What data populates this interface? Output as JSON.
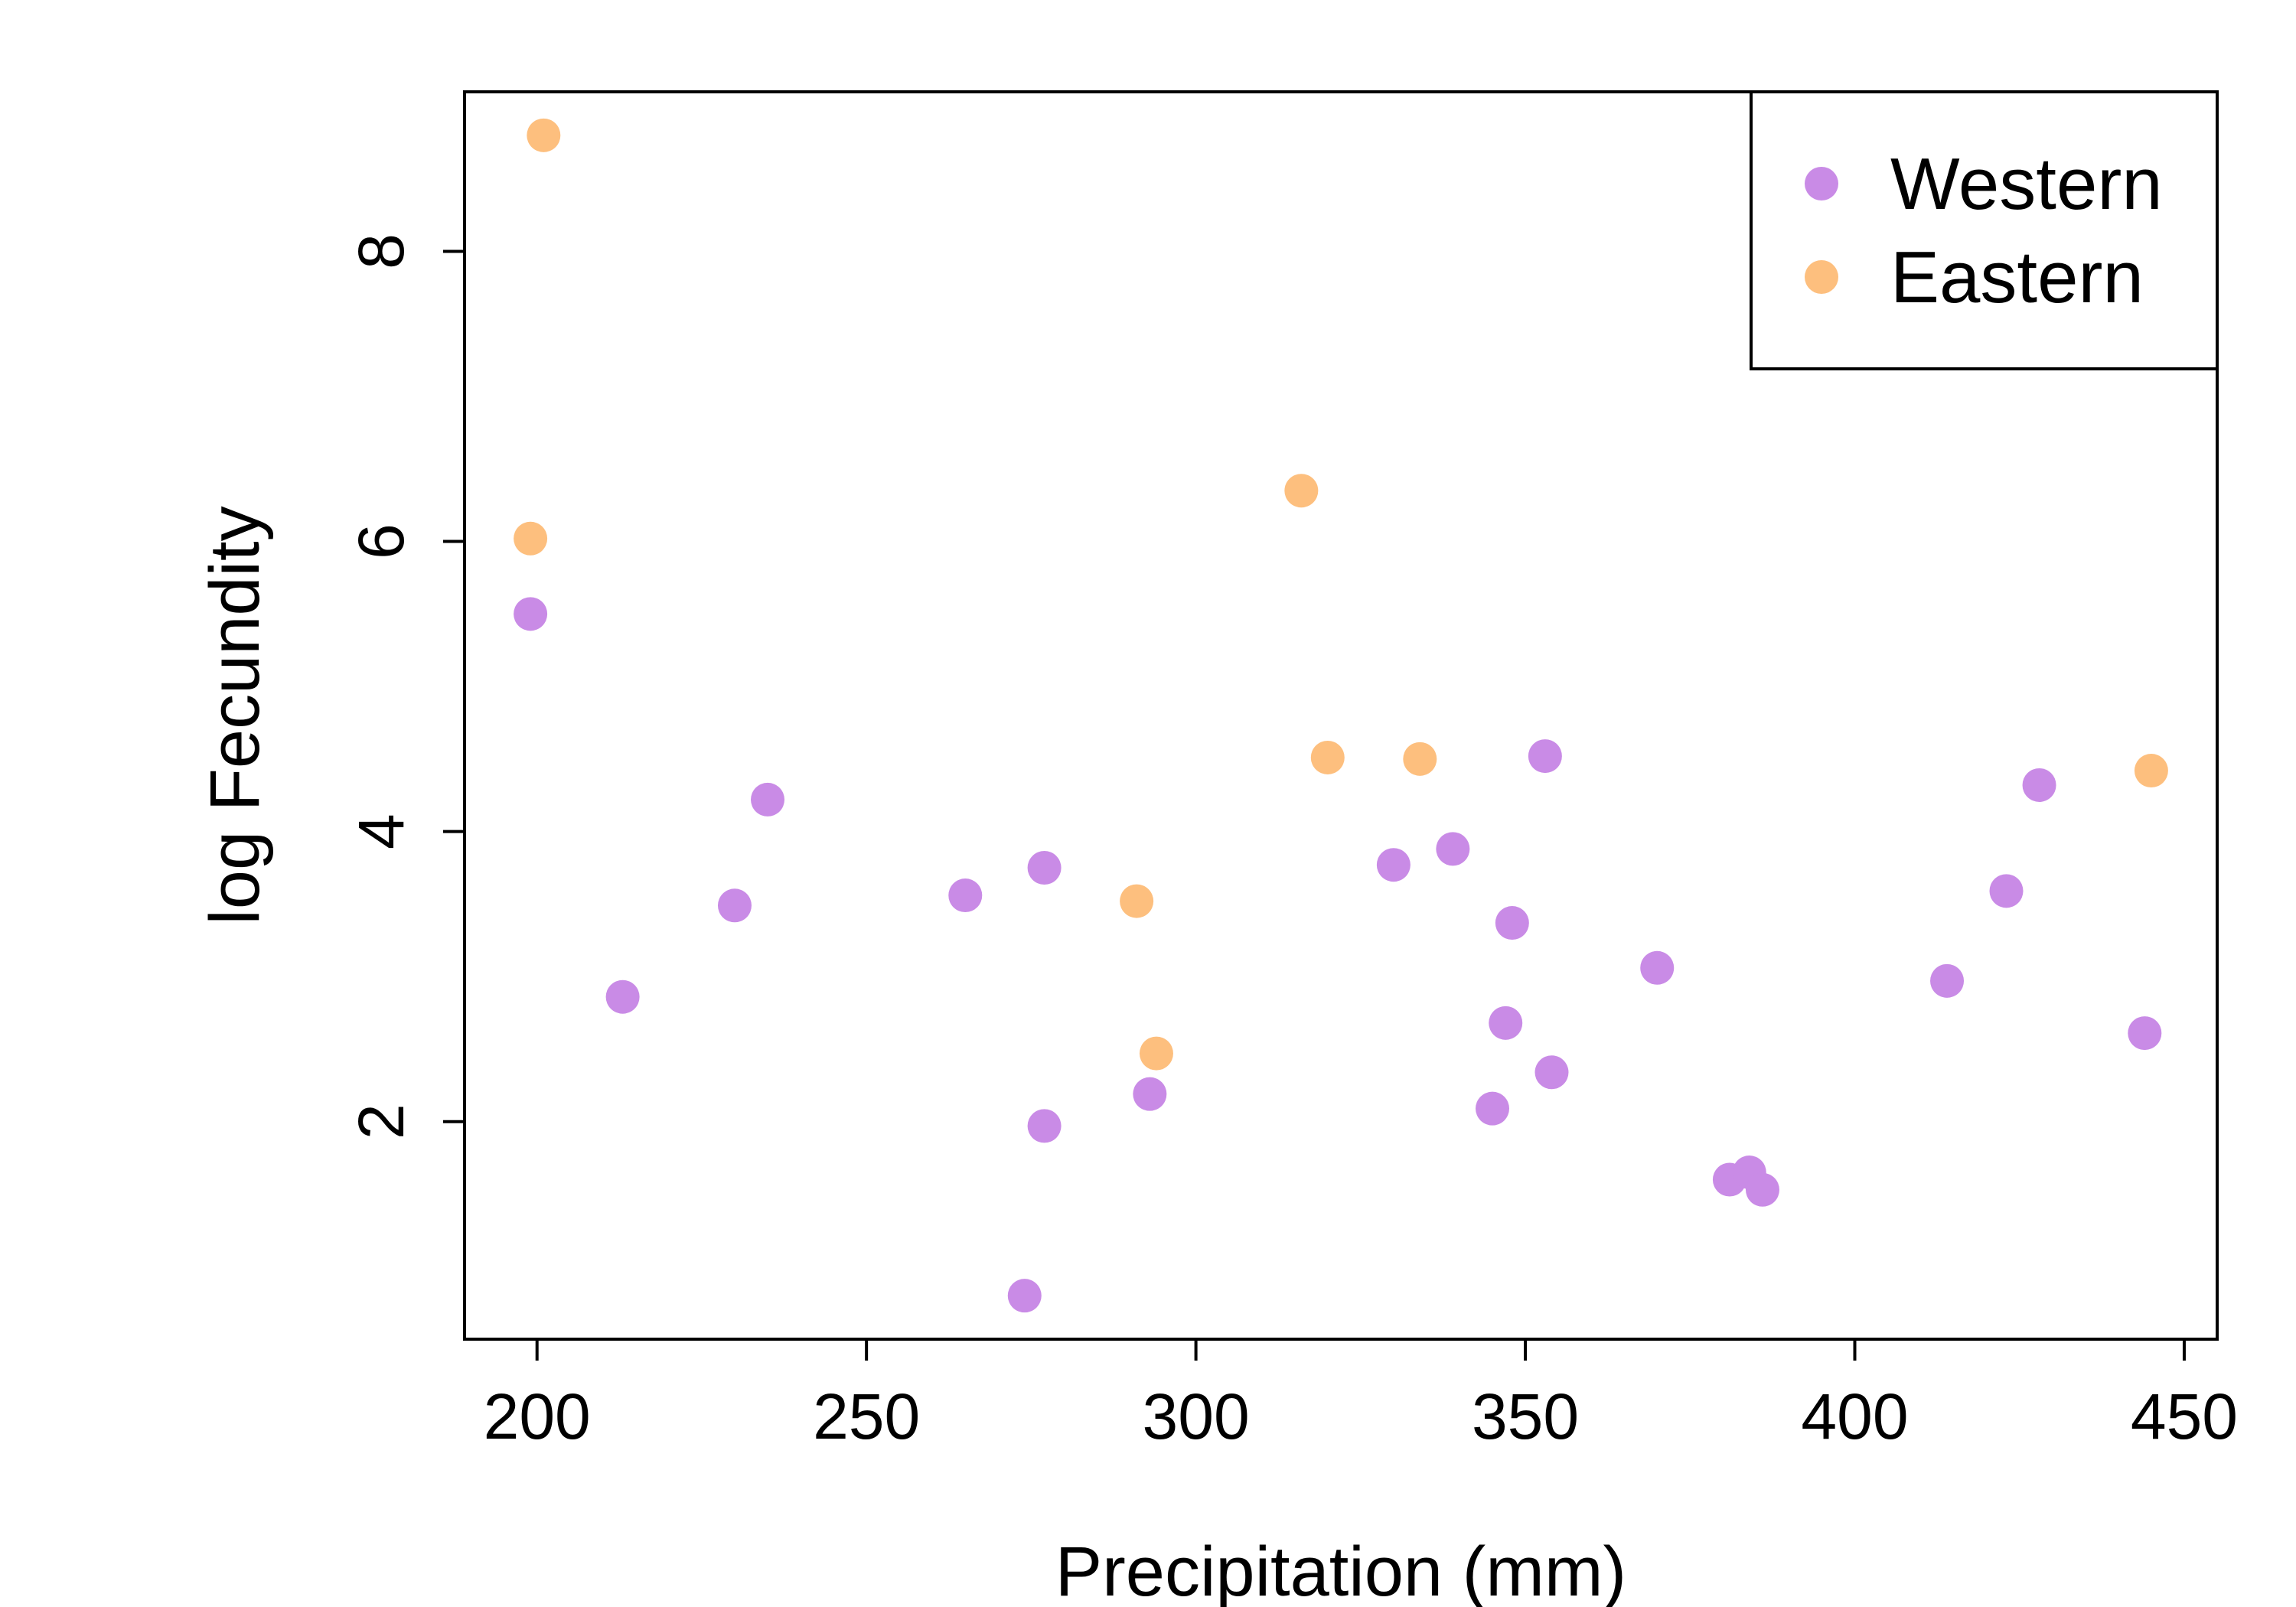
{
  "chart_data": {
    "type": "scatter",
    "title": "",
    "xlabel": "Precipitation (mm)",
    "ylabel": "log Fecundity",
    "xlim": [
      189,
      455
    ],
    "ylim": [
      0.5,
      9.1
    ],
    "x_ticks": [
      200,
      250,
      300,
      350,
      400,
      450
    ],
    "x_tick_labels": [
      "200",
      "250",
      "300",
      "350",
      "400",
      "450"
    ],
    "y_ticks": [
      2,
      4,
      6,
      8
    ],
    "y_tick_labels": [
      "2",
      "4",
      "6",
      "8"
    ],
    "grid": false,
    "legend_position": "top-right",
    "series": [
      {
        "name": "Western",
        "color": "#c98be6",
        "points": [
          {
            "x": 199,
            "y": 5.5
          },
          {
            "x": 213,
            "y": 2.86
          },
          {
            "x": 230,
            "y": 3.49
          },
          {
            "x": 235,
            "y": 4.22
          },
          {
            "x": 265,
            "y": 3.56
          },
          {
            "x": 274,
            "y": 0.8
          },
          {
            "x": 277,
            "y": 1.97
          },
          {
            "x": 277,
            "y": 3.75
          },
          {
            "x": 293,
            "y": 2.19
          },
          {
            "x": 330,
            "y": 3.77
          },
          {
            "x": 339,
            "y": 3.88
          },
          {
            "x": 345,
            "y": 2.09
          },
          {
            "x": 347,
            "y": 2.68
          },
          {
            "x": 348,
            "y": 3.37
          },
          {
            "x": 353,
            "y": 4.52
          },
          {
            "x": 354,
            "y": 2.34
          },
          {
            "x": 370,
            "y": 3.06
          },
          {
            "x": 381,
            "y": 1.6
          },
          {
            "x": 384,
            "y": 1.65
          },
          {
            "x": 386,
            "y": 1.53
          },
          {
            "x": 414,
            "y": 2.97
          },
          {
            "x": 423,
            "y": 3.59
          },
          {
            "x": 428,
            "y": 4.32
          },
          {
            "x": 444,
            "y": 2.61
          }
        ]
      },
      {
        "name": "Eastern",
        "color": "#fdbf7e",
        "points": [
          {
            "x": 199,
            "y": 6.02
          },
          {
            "x": 201,
            "y": 8.8
          },
          {
            "x": 291,
            "y": 3.52
          },
          {
            "x": 294,
            "y": 2.47
          },
          {
            "x": 316,
            "y": 6.35
          },
          {
            "x": 320,
            "y": 4.51
          },
          {
            "x": 334,
            "y": 4.5
          },
          {
            "x": 445,
            "y": 4.42
          }
        ]
      }
    ]
  }
}
